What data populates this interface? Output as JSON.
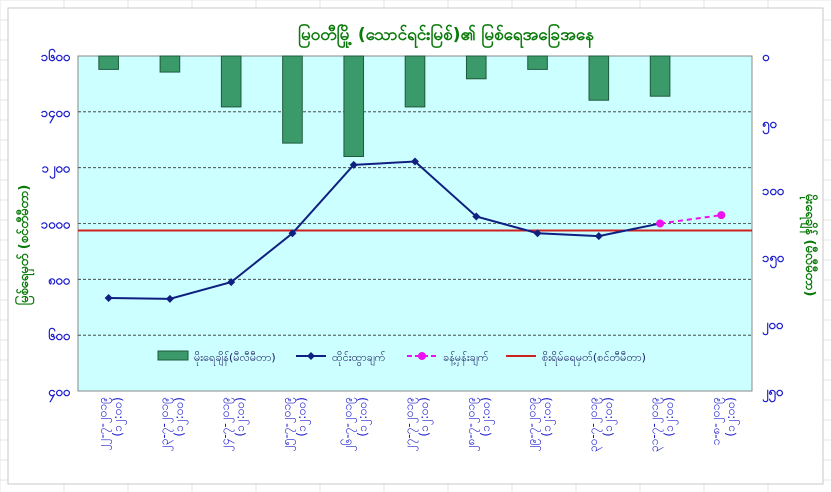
{
  "chart_data": {
    "type": "bar+line",
    "title": "မြဝတီမြို့ (သောင်ရင်းမြစ်)၏ မြစ်ရေအခြေအနေ",
    "ylabel_left": "မြစ်ရေမှတ် (စင်တီမီတာ)",
    "ylabel_right": "မိုးရေချိန် (မီလီမီတာ)",
    "ylim_left": [
      400,
      1600
    ],
    "ylim_right_inverted": [
      0,
      250
    ],
    "left_ticks": [
      "၁၆၀၀",
      "၁၄၀၀",
      "၁၂၀၀",
      "၁၀၀၀",
      "၈၀၀",
      "၆၀၀",
      "၄၀၀"
    ],
    "left_tick_values": [
      1600,
      1400,
      1200,
      1000,
      800,
      600,
      400
    ],
    "right_ticks": [
      "၀",
      "၅၀",
      "၁၀၀",
      "၁၅၀",
      "၂၀၀",
      "၂၅၀"
    ],
    "right_tick_values": [
      0,
      50,
      100,
      150,
      200,
      250
    ],
    "categories": [
      [
        "၂၂-၇-၂၀၁၉",
        "(၁၂:၀၀)"
      ],
      [
        "၂၃-၇-၂၀၁၉",
        "(၁၂:၀၀)"
      ],
      [
        "၂၄-၇-၂၀၁၉",
        "(၁၂:၀၀)"
      ],
      [
        "၂၅-၇-၂၀၁၉",
        "(၁၂:၀၀)"
      ],
      [
        "၂၆-၇-၂၀၁၉",
        "(၁၂:၀၀)"
      ],
      [
        "၂၇-၇-၂၀၁၉",
        "(၁၂:၀၀)"
      ],
      [
        "၂၈-၇-၂၀၁၉",
        "(၁၂:၀၀)"
      ],
      [
        "၂၉-၇-၂၀၁၉",
        "(၁၂:၀၀)"
      ],
      [
        "၃၀-၇-၂၀၁၉",
        "(၁၂:၀၀)"
      ],
      [
        "၃၁-၇-၂၀၁၉",
        "(၁၂:၀၀)"
      ],
      [
        "၁-၈-၂၀၁၉",
        "(၁၂:၀၀)"
      ]
    ],
    "series": [
      {
        "name": "မိုးရေချိန်(မီလီမီတာ)",
        "type": "bar",
        "axis": "right",
        "color": "#3a9a6a",
        "values": [
          10,
          12,
          38,
          65,
          75,
          38,
          17,
          10,
          33,
          30,
          null
        ]
      },
      {
        "name": "ထိုင်းထွာချက်",
        "type": "line",
        "axis": "left",
        "color": "#102080",
        "values": [
          733,
          730,
          790,
          965,
          1210,
          1222,
          1025,
          965,
          955,
          1000,
          null
        ]
      },
      {
        "name": "ခန့်မှန်းချက်",
        "type": "line-dashed",
        "axis": "left",
        "color": "#ee11ee",
        "values": [
          null,
          null,
          null,
          null,
          null,
          null,
          null,
          null,
          null,
          1000,
          1030
        ]
      },
      {
        "name": "စိုးရိမ်ရေမှတ်(စင်တီမီတာ)",
        "type": "hline",
        "axis": "left",
        "color": "#cc2222",
        "value": 975
      }
    ],
    "grid": true,
    "legend_position": "bottom-inside"
  },
  "colors": {
    "plot_bg": "#ccffff",
    "title": "#0a7a0a",
    "axis_text": "#1a1acc"
  }
}
